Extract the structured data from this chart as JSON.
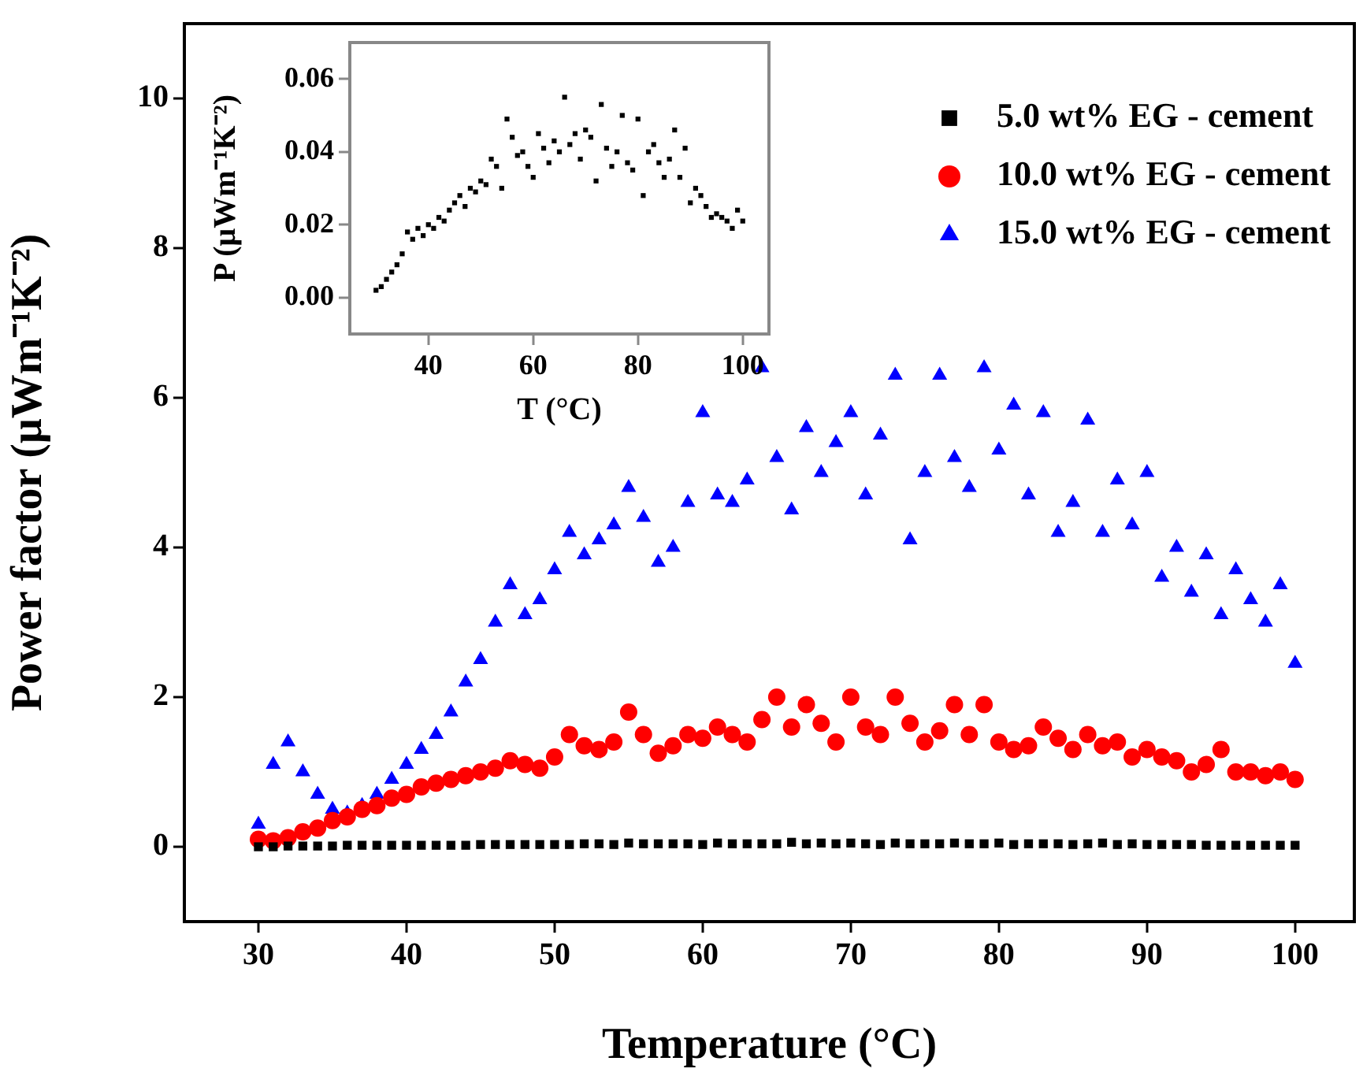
{
  "chart_data": [
    {
      "type": "scatter",
      "xlabel": "Temperature (°C)",
      "ylabel": "Power factor (μWm⁻¹K⁻²)",
      "xlim": [
        25,
        104
      ],
      "ylim": [
        -1,
        11
      ],
      "xticks": [
        30,
        40,
        50,
        60,
        70,
        80,
        90,
        100
      ],
      "yticks": [
        0,
        2,
        4,
        6,
        8,
        10
      ],
      "grid": false,
      "legend": "top right",
      "x": [
        30,
        31,
        32,
        33,
        34,
        35,
        36,
        37,
        38,
        39,
        40,
        41,
        42,
        43,
        44,
        45,
        46,
        47,
        48,
        49,
        50,
        51,
        52,
        53,
        54,
        55,
        56,
        57,
        58,
        59,
        60,
        61,
        62,
        63,
        64,
        65,
        66,
        67,
        68,
        69,
        70,
        71,
        72,
        73,
        74,
        75,
        76,
        77,
        78,
        79,
        80,
        81,
        82,
        83,
        84,
        85,
        86,
        87,
        88,
        89,
        90,
        91,
        92,
        93,
        94,
        95,
        96,
        97,
        98,
        99,
        100
      ],
      "series": [
        {
          "name": "5.0 wt% EG - cement",
          "color": "#000000",
          "marker": "square",
          "values": [
            0,
            0,
            0.01,
            0.01,
            0.01,
            0.01,
            0.02,
            0.02,
            0.02,
            0.02,
            0.02,
            0.02,
            0.02,
            0.02,
            0.02,
            0.03,
            0.03,
            0.03,
            0.03,
            0.03,
            0.03,
            0.03,
            0.04,
            0.04,
            0.03,
            0.05,
            0.04,
            0.04,
            0.04,
            0.04,
            0.03,
            0.05,
            0.04,
            0.04,
            0.04,
            0.04,
            0.06,
            0.04,
            0.05,
            0.04,
            0.05,
            0.04,
            0.03,
            0.05,
            0.04,
            0.04,
            0.04,
            0.05,
            0.04,
            0.04,
            0.05,
            0.03,
            0.04,
            0.04,
            0.04,
            0.03,
            0.04,
            0.05,
            0.03,
            0.04,
            0.03,
            0.03,
            0.03,
            0.03,
            0.02,
            0.02,
            0.02,
            0.02,
            0.02,
            0.02,
            0.02
          ]
        },
        {
          "name": "10.0 wt% EG - cement",
          "color": "#ff0000",
          "marker": "circle",
          "values": [
            0.1,
            0.08,
            0.12,
            0.2,
            0.25,
            0.35,
            0.4,
            0.5,
            0.55,
            0.65,
            0.7,
            0.8,
            0.85,
            0.9,
            0.95,
            1.0,
            1.05,
            1.15,
            1.1,
            1.05,
            1.2,
            1.5,
            1.35,
            1.3,
            1.4,
            1.8,
            1.5,
            1.25,
            1.35,
            1.5,
            1.45,
            1.6,
            1.5,
            1.4,
            1.7,
            2.0,
            1.6,
            1.9,
            1.65,
            1.4,
            2.0,
            1.6,
            1.5,
            2.0,
            1.65,
            1.4,
            1.55,
            1.9,
            1.5,
            1.9,
            1.4,
            1.3,
            1.35,
            1.6,
            1.45,
            1.3,
            1.5,
            1.35,
            1.4,
            1.2,
            1.3,
            1.2,
            1.15,
            1.0,
            1.1,
            1.3,
            1.0,
            1.0,
            0.95,
            1.0,
            0.9
          ]
        },
        {
          "name": "15.0 wt% EG - cement",
          "color": "#0000ff",
          "marker": "triangle",
          "values": [
            0.3,
            1.1,
            1.4,
            1.0,
            0.7,
            0.5,
            0.45,
            0.55,
            0.7,
            0.9,
            1.1,
            1.3,
            1.5,
            1.8,
            2.2,
            2.5,
            3.0,
            3.5,
            3.1,
            3.3,
            3.7,
            4.2,
            3.9,
            4.1,
            4.3,
            4.8,
            4.4,
            3.8,
            4.0,
            4.6,
            5.8,
            4.7,
            4.6,
            4.9,
            6.4,
            5.2,
            4.5,
            5.6,
            5.0,
            5.4,
            5.8,
            4.7,
            5.5,
            6.3,
            4.1,
            5.0,
            6.3,
            5.2,
            4.8,
            6.4,
            5.3,
            5.9,
            4.7,
            5.8,
            4.2,
            4.6,
            5.7,
            4.2,
            4.9,
            4.3,
            5.0,
            3.6,
            4.0,
            3.4,
            3.9,
            3.1,
            3.7,
            3.3,
            3.0,
            3.5,
            2.45
          ]
        }
      ]
    },
    {
      "type": "scatter",
      "xlabel": "T (°C)",
      "ylabel": "P (μWm⁻¹K⁻²)",
      "xlim": [
        25,
        105
      ],
      "ylim": [
        -0.01,
        0.07
      ],
      "xticks": [
        40,
        60,
        80,
        100
      ],
      "yticks": [
        {
          "value": 0,
          "label": "0.00"
        },
        {
          "value": 0.02,
          "label": "0.02"
        },
        {
          "value": 0.04,
          "label": "0.04"
        },
        {
          "value": 0.06,
          "label": "0.06"
        }
      ],
      "grid": false,
      "x": [
        30,
        31,
        32,
        33,
        34,
        35,
        36,
        37,
        38,
        39,
        40,
        41,
        42,
        43,
        44,
        45,
        46,
        47,
        48,
        49,
        50,
        51,
        52,
        53,
        54,
        55,
        56,
        57,
        58,
        59,
        60,
        61,
        62,
        63,
        64,
        65,
        66,
        67,
        68,
        69,
        70,
        71,
        72,
        73,
        74,
        75,
        76,
        77,
        78,
        79,
        80,
        81,
        82,
        83,
        84,
        85,
        86,
        87,
        88,
        89,
        90,
        91,
        92,
        93,
        94,
        95,
        96,
        97,
        98,
        99,
        100
      ],
      "series": [
        {
          "color": "#000000",
          "marker": "square",
          "values": [
            0.002,
            0.003,
            0.005,
            0.007,
            0.009,
            0.012,
            0.018,
            0.016,
            0.019,
            0.017,
            0.02,
            0.019,
            0.022,
            0.021,
            0.024,
            0.026,
            0.028,
            0.025,
            0.03,
            0.029,
            0.032,
            0.031,
            0.038,
            0.036,
            0.03,
            0.049,
            0.044,
            0.039,
            0.04,
            0.036,
            0.033,
            0.045,
            0.041,
            0.037,
            0.043,
            0.04,
            0.055,
            0.042,
            0.045,
            0.038,
            0.046,
            0.044,
            0.032,
            0.053,
            0.041,
            0.036,
            0.04,
            0.05,
            0.037,
            0.035,
            0.049,
            0.028,
            0.04,
            0.042,
            0.037,
            0.033,
            0.038,
            0.046,
            0.033,
            0.041,
            0.026,
            0.03,
            0.028,
            0.025,
            0.022,
            0.023,
            0.022,
            0.021,
            0.019,
            0.024,
            0.021
          ]
        }
      ]
    }
  ]
}
